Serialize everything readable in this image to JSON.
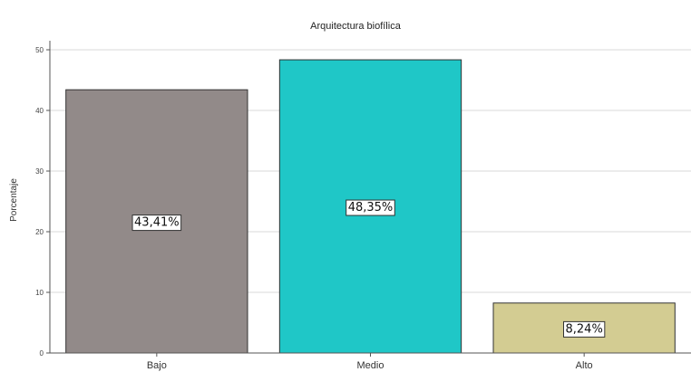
{
  "chart_data": {
    "type": "bar",
    "title": "Arquitectura biofílica",
    "xlabel": "",
    "ylabel": "Porcentaje",
    "categories": [
      "Bajo",
      "Medio",
      "Alto"
    ],
    "values": [
      43.41,
      48.35,
      8.24
    ],
    "data_labels": [
      "43,41%",
      "48,35%",
      "8,24%"
    ],
    "colors": [
      "#928a89",
      "#1fc7c7",
      "#d3cc92"
    ],
    "ylim": [
      0,
      50
    ],
    "yticks": [
      0,
      10,
      20,
      30,
      40,
      50
    ],
    "ytick_labels": [
      "0",
      "10",
      "20",
      "30",
      "40",
      "50"
    ],
    "grid": true,
    "legend": "none"
  }
}
